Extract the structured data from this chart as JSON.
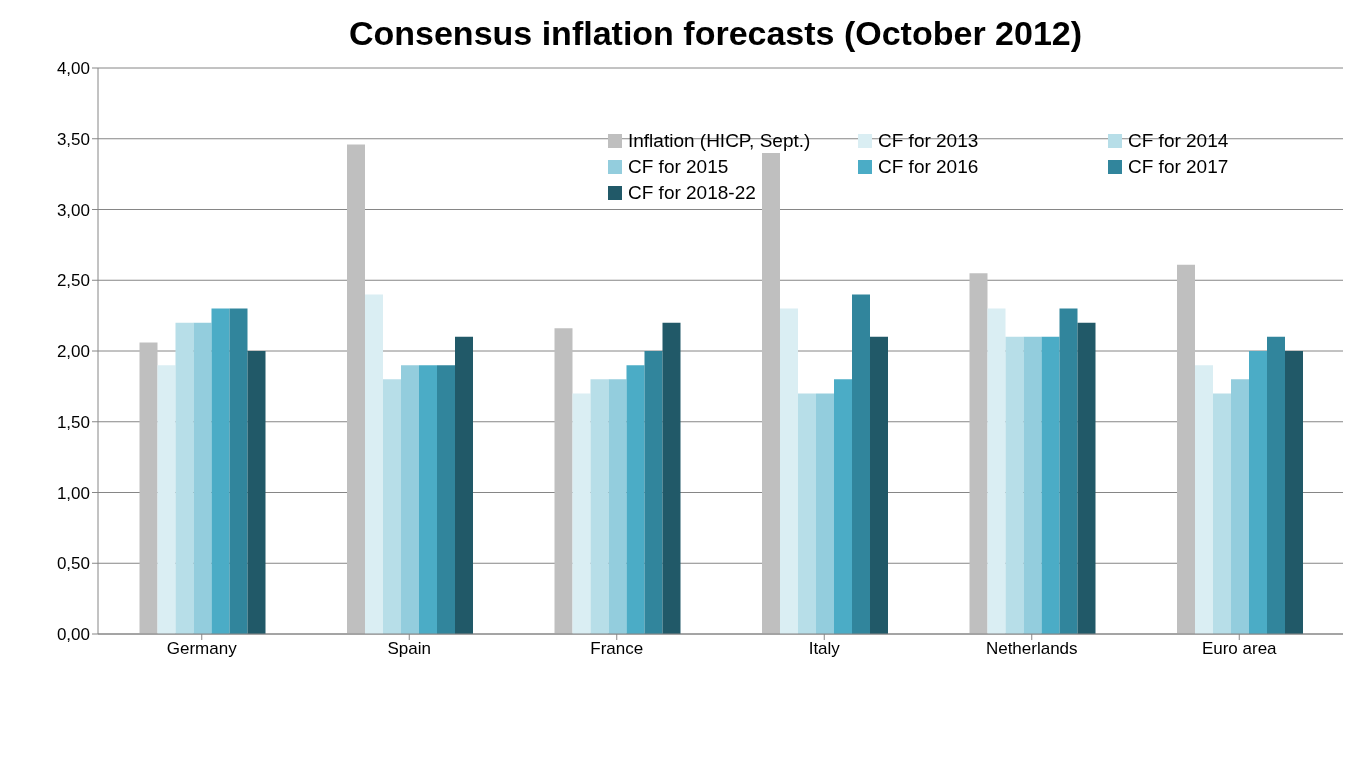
{
  "chart_data": {
    "type": "bar",
    "title": "Consensus inflation forecasts (October 2012)",
    "categories": [
      "Germany",
      "Spain",
      "France",
      "Italy",
      "Netherlands",
      "Euro area"
    ],
    "series": [
      {
        "name": "Inflation (HICP, Sept.)",
        "color": "#bfbfbf",
        "values": [
          2.06,
          3.46,
          2.16,
          3.4,
          2.55,
          2.61
        ]
      },
      {
        "name": "CF for 2013",
        "color": "#daeef3",
        "values": [
          1.9,
          2.4,
          1.7,
          2.3,
          2.3,
          1.9
        ]
      },
      {
        "name": "CF for 2014",
        "color": "#b7dee8",
        "values": [
          2.2,
          1.8,
          1.8,
          1.7,
          2.1,
          1.7
        ]
      },
      {
        "name": "CF for 2015",
        "color": "#93cddd",
        "values": [
          2.2,
          1.9,
          1.8,
          1.7,
          2.1,
          1.8
        ]
      },
      {
        "name": "CF for 2016",
        "color": "#4bacc6",
        "values": [
          2.3,
          1.9,
          1.9,
          1.8,
          2.1,
          2.0
        ]
      },
      {
        "name": "CF for 2017",
        "color": "#31859c",
        "values": [
          2.3,
          1.9,
          2.0,
          2.4,
          2.3,
          2.1
        ]
      },
      {
        "name": "CF for 2018-22",
        "color": "#215968",
        "values": [
          2.0,
          2.1,
          2.2,
          2.1,
          2.2,
          2.0
        ]
      }
    ],
    "ylim": [
      0,
      4
    ],
    "yticks": [
      {
        "value": 0,
        "label": "0,00"
      },
      {
        "value": 0.5,
        "label": "0,50"
      },
      {
        "value": 1,
        "label": "1,00"
      },
      {
        "value": 1.5,
        "label": "1,50"
      },
      {
        "value": 2,
        "label": "2,00"
      },
      {
        "value": 2.5,
        "label": "2,50"
      },
      {
        "value": 3,
        "label": "3,00"
      },
      {
        "value": 3.5,
        "label": "3,50"
      },
      {
        "value": 4,
        "label": "4,00"
      }
    ],
    "grid": "y",
    "legend": "top right"
  }
}
